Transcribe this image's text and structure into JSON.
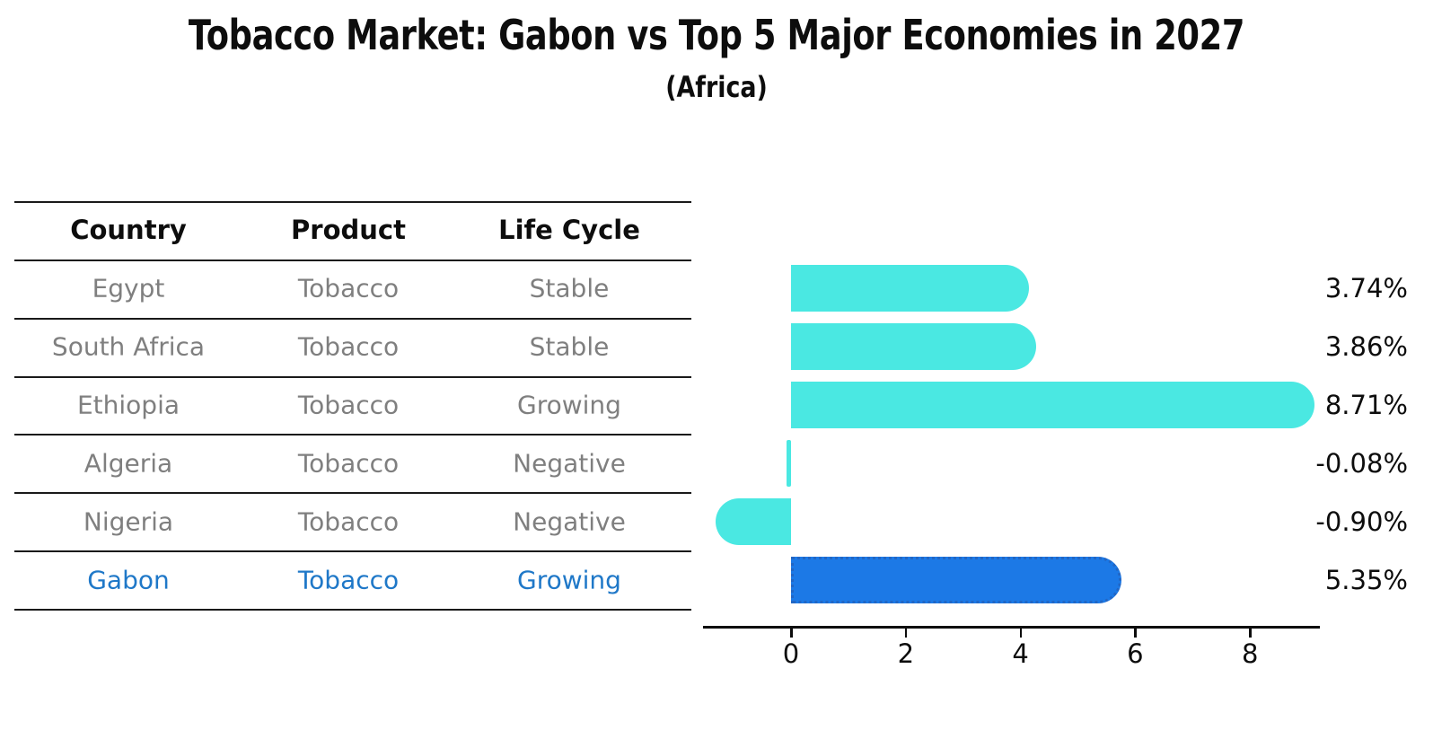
{
  "title": "Tobacco Market: Gabon vs Top 5 Major Economies in 2027",
  "subtitle": "(Africa)",
  "table": {
    "headers": [
      "Country",
      "Product",
      "Life Cycle"
    ],
    "rows": [
      {
        "country": "Egypt",
        "product": "Tobacco",
        "life_cycle": "Stable",
        "highlight": false
      },
      {
        "country": "South Africa",
        "product": "Tobacco",
        "life_cycle": "Stable",
        "highlight": false
      },
      {
        "country": "Ethiopia",
        "product": "Tobacco",
        "life_cycle": "Growing",
        "highlight": false
      },
      {
        "country": "Algeria",
        "product": "Tobacco",
        "life_cycle": "Negative",
        "highlight": false
      },
      {
        "country": "Nigeria",
        "product": "Tobacco",
        "life_cycle": "Negative",
        "highlight": false
      },
      {
        "country": "Gabon",
        "product": "Tobacco",
        "life_cycle": "Growing",
        "highlight": true
      }
    ]
  },
  "chart_data": {
    "type": "bar",
    "orientation": "horizontal",
    "title": "Tobacco Market: Gabon vs Top 5 Major Economies in 2027",
    "subtitle": "(Africa)",
    "categories": [
      "Egypt",
      "South Africa",
      "Ethiopia",
      "Algeria",
      "Nigeria",
      "Gabon"
    ],
    "values": [
      3.74,
      3.86,
      8.71,
      -0.08,
      -0.9,
      5.35
    ],
    "value_labels": [
      "3.74%",
      "3.86%",
      "8.71%",
      "-0.08%",
      "-0.90%",
      "5.35%"
    ],
    "x_ticks": [
      0,
      2,
      4,
      6,
      8
    ],
    "xlim": [
      -1.6,
      9.25
    ],
    "grid": false,
    "legend": "none",
    "bar_color": "#4AE8E2",
    "highlight_bar_color": "#1C79E6",
    "highlight_border_color": "#2266C4",
    "highlight_index": 5,
    "highlight_text_color": "#1F78C8",
    "text_color": "#7F7F7F",
    "axis_color": "#0D0D0D"
  }
}
